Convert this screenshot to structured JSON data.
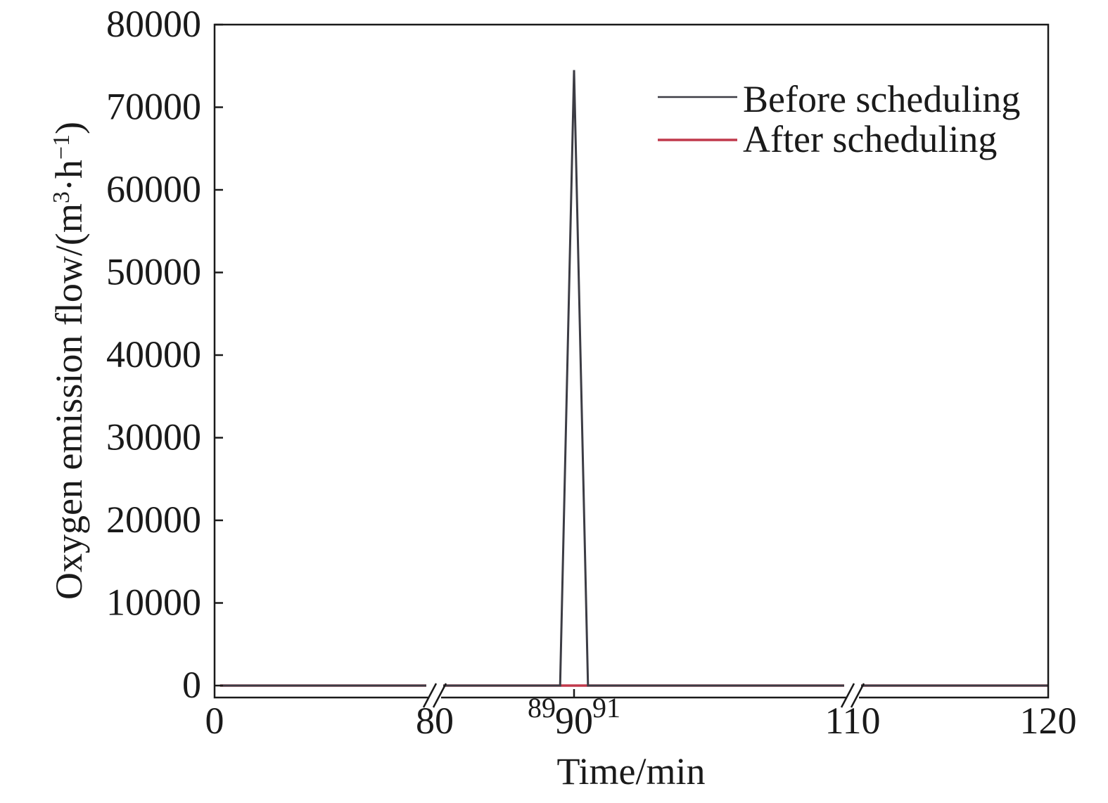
{
  "chart_data": {
    "type": "line",
    "title": "",
    "xlabel": "Time/min",
    "ylabel": "Oxygen emission flow/(m³·h⁻¹)",
    "ylabel_parts": {
      "prefix": "Oxygen emission flow/(m",
      "sup1": "3",
      "mid": "·h",
      "sup2": "−1",
      "suffix": ")"
    },
    "ylim": [
      0,
      80000
    ],
    "y_ticks": [
      0,
      10000,
      20000,
      30000,
      40000,
      50000,
      60000,
      70000,
      80000
    ],
    "x_axis_segments": [
      {
        "from": 0,
        "to": 80
      },
      {
        "from": 80,
        "to": 110
      },
      {
        "from": 110,
        "to": 120
      }
    ],
    "x_ticks": [
      0,
      80,
      90,
      110,
      120
    ],
    "x_minor_labels": [
      89,
      91
    ],
    "axis_breaks": [
      80,
      110
    ],
    "grid": false,
    "legend_position": "top-right",
    "series": [
      {
        "name": "Before scheduling",
        "color": "#3c3c44",
        "points": [
          [
            2,
            0
          ],
          [
            89,
            0
          ],
          [
            90,
            74500
          ],
          [
            91,
            0
          ],
          [
            120,
            0
          ]
        ]
      },
      {
        "name": "After scheduling",
        "color": "#c0394b",
        "points": [
          [
            2,
            0
          ],
          [
            120,
            0
          ]
        ]
      }
    ]
  }
}
